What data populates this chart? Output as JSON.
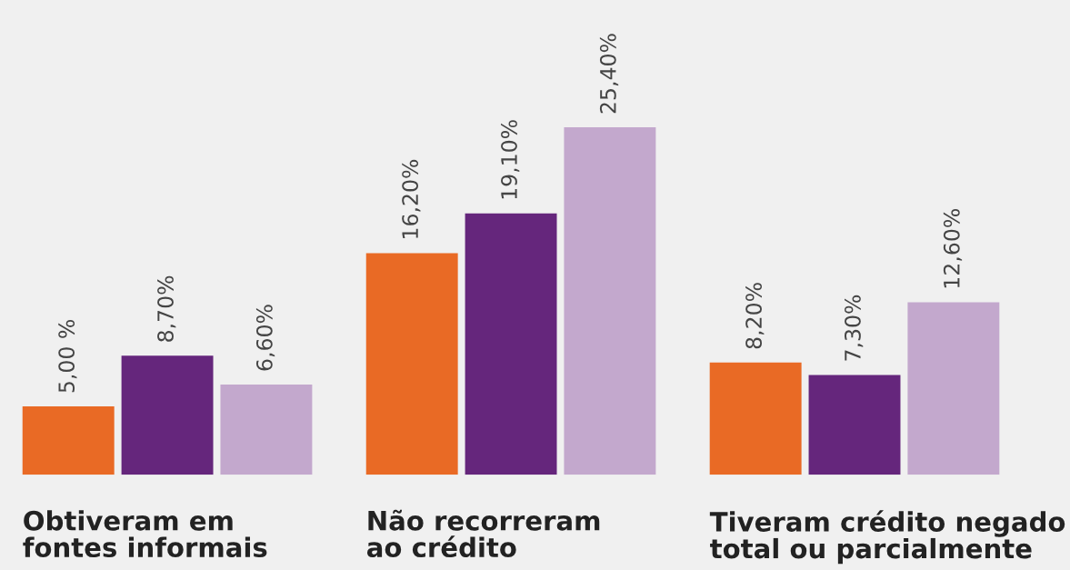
{
  "chart_data": {
    "type": "bar",
    "categories": [
      "Obtiveram em\nfontes informais",
      "Não recorreram\nao crédito",
      "Tiveram crédito negado\ntotal ou parcialmente"
    ],
    "series": [
      {
        "color": "#e96a25",
        "values": [
          5.0,
          16.2,
          8.2
        ],
        "value_labels": [
          "5,00 %",
          "16,20%",
          "8,20%"
        ]
      },
      {
        "color": "#65267c",
        "values": [
          8.7,
          19.1,
          7.3
        ],
        "value_labels": [
          "8,70%",
          "19,10%",
          "7,30%"
        ]
      },
      {
        "color": "#c3a8cd",
        "values": [
          6.6,
          25.4,
          12.6
        ],
        "value_labels": [
          "6,60%",
          "25,40%",
          "12,60%"
        ]
      }
    ],
    "tick_labels": "x"
  }
}
